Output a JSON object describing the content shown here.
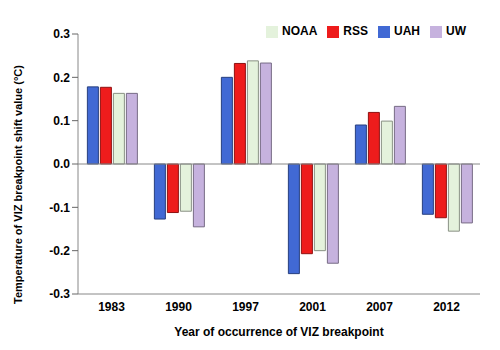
{
  "chart_data": {
    "type": "bar",
    "x_label": "Year of occurrence of VIZ breakpoint",
    "y_label": "Temperature of VIZ breakpoint shift value (°C)",
    "categories": [
      "1983",
      "1990",
      "1997",
      "2001",
      "2007",
      "2012"
    ],
    "series": [
      {
        "name": "UAH",
        "color": "#4169d4",
        "values": [
          0.178,
          -0.127,
          0.2,
          -0.253,
          0.09,
          -0.116
        ]
      },
      {
        "name": "RSS",
        "color": "#ee1c1c",
        "values": [
          0.177,
          -0.112,
          0.232,
          -0.207,
          0.119,
          -0.124
        ]
      },
      {
        "name": "NOAA",
        "color": "#e4f2dc",
        "values": [
          0.163,
          -0.109,
          0.238,
          -0.2,
          0.099,
          -0.155
        ]
      },
      {
        "name": "UW",
        "color": "#c6b2de",
        "values": [
          0.163,
          -0.145,
          0.233,
          -0.229,
          0.133,
          -0.136
        ]
      }
    ],
    "ylim": [
      -0.3,
      0.3
    ],
    "yticks": [
      -0.3,
      -0.2,
      -0.1,
      {
        "value": 0,
        "label": "0.0"
      },
      0.1,
      0.2,
      0.3
    ],
    "grid": false,
    "legend": "upper right"
  }
}
